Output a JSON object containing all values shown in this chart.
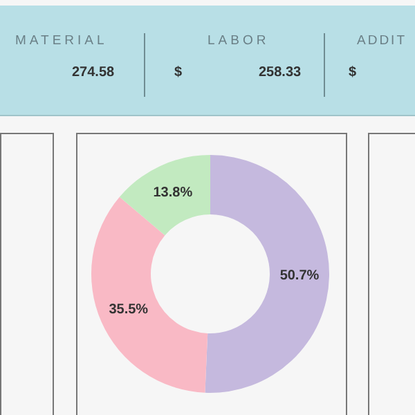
{
  "chart_data": [
    {
      "type": "other",
      "annotations": [
        "MATERIAL",
        "274.58",
        "LABOR",
        "$",
        "258.33",
        "ADDIT",
        "$"
      ]
    },
    {
      "type": "donut",
      "categories": [
        null,
        null,
        null
      ],
      "values": [
        50.7,
        35.5,
        13.8
      ],
      "colors": [
        "#c5b9de",
        "#f9b9c5",
        "#c2eac0"
      ],
      "value_labels": [
        "50.7%",
        "35.5%",
        "13.8%"
      ],
      "legend": false
    }
  ]
}
